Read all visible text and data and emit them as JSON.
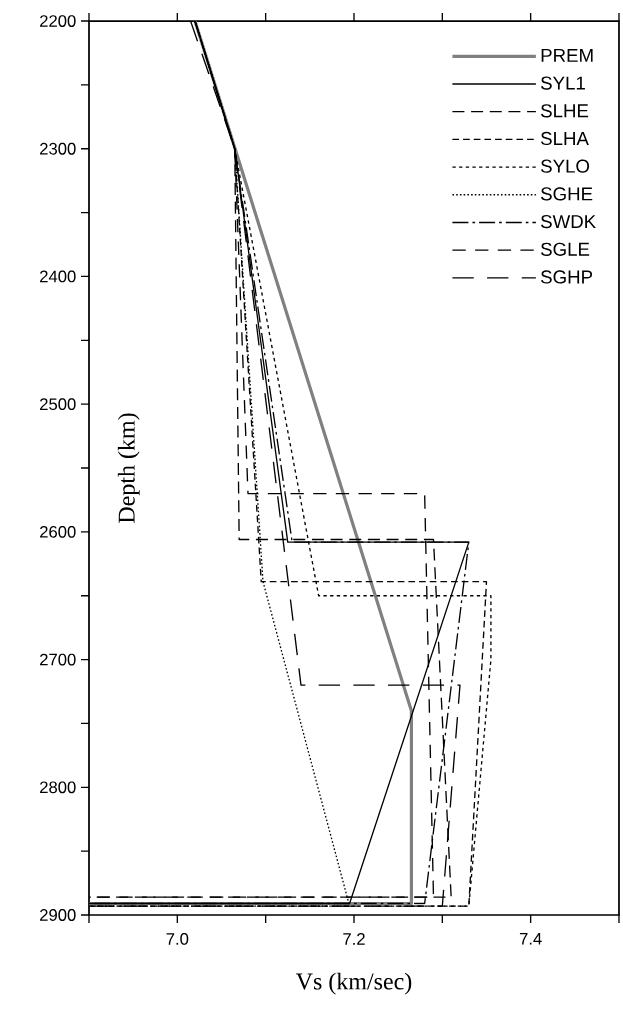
{
  "chart_data": {
    "type": "line",
    "xlabel": "Vs (km/sec)",
    "ylabel": "Depth (km)",
    "xlim": [
      6.9,
      7.5
    ],
    "ylim": [
      2900,
      2200
    ],
    "xticks": [
      {
        "value": 6.9,
        "label": null
      },
      {
        "value": 7.0,
        "label": "7.0"
      },
      {
        "value": 7.1,
        "label": null
      },
      {
        "value": 7.2,
        "label": "7.2"
      },
      {
        "value": 7.3,
        "label": null
      },
      {
        "value": 7.4,
        "label": "7.4"
      },
      {
        "value": 7.5,
        "label": null
      }
    ],
    "yticks": [
      2200,
      {
        "value": 2250,
        "label": null
      },
      2300,
      {
        "value": 2350,
        "label": null
      },
      2400,
      {
        "value": 2450,
        "label": null
      },
      2500,
      {
        "value": 2550,
        "label": null
      },
      2600,
      {
        "value": 2650,
        "label": null
      },
      2700,
      {
        "value": 2750,
        "label": null
      },
      2800,
      {
        "value": 2850,
        "label": null
      },
      2900
    ],
    "legend": "top right",
    "series": [
      {
        "name": "PREM",
        "color": "#808080",
        "line_style": "solid",
        "x": [
          7.02,
          7.265,
          7.265,
          6.9
        ],
        "values": [
          2200,
          2740,
          2891,
          2891
        ]
      },
      {
        "name": "SYL1",
        "color": "#000000",
        "line_style": "solid",
        "x": [
          7.02,
          7.065,
          7.125,
          7.33,
          7.195,
          6.9
        ],
        "values": [
          2200,
          2300,
          2608,
          2608,
          2891,
          2891
        ]
      },
      {
        "name": "SLHE",
        "color": "#000000",
        "line_style": "dashed",
        "x": [
          7.02,
          7.065,
          7.07,
          7.29,
          7.31,
          6.9
        ],
        "values": [
          2200,
          2300,
          2606,
          2606,
          2886,
          2886
        ]
      },
      {
        "name": "SLHA",
        "color": "#000000",
        "line_style": "dashed",
        "x": [
          7.02,
          7.065,
          7.095,
          7.35,
          7.33,
          6.9
        ],
        "values": [
          2200,
          2300,
          2639,
          2639,
          2893,
          2893
        ]
      },
      {
        "name": "SYLO",
        "color": "#000000",
        "line_style": "dotted",
        "x": [
          7.02,
          7.065,
          7.16,
          7.355,
          7.355,
          7.33,
          6.9
        ],
        "values": [
          2200,
          2300,
          2650,
          2650,
          2700,
          2893,
          2893
        ]
      },
      {
        "name": "SGHE",
        "color": "#000000",
        "line_style": "dotted",
        "x": [
          7.02,
          7.065,
          7.097,
          7.195,
          6.9
        ],
        "values": [
          2200,
          2300,
          2639,
          2893,
          2893
        ]
      },
      {
        "name": "SWDK",
        "color": "#000000",
        "line_style": "dashed",
        "x": [
          7.02,
          7.065,
          7.13,
          7.33,
          7.28,
          6.9
        ],
        "values": [
          2200,
          2300,
          2608,
          2608,
          2891,
          2891
        ]
      },
      {
        "name": "SGLE",
        "color": "#000000",
        "line_style": "dashed",
        "x": [
          7.02,
          7.065,
          7.08,
          7.28,
          7.29,
          6.9
        ],
        "values": [
          2200,
          2300,
          2570,
          2570,
          2886,
          2886
        ]
      },
      {
        "name": "SGHP",
        "color": "#000000",
        "line_style": "dashed",
        "x": [
          7.015,
          7.065,
          7.14,
          7.32,
          7.3,
          6.9
        ],
        "values": [
          2200,
          2300,
          2720,
          2720,
          2893,
          2893
        ]
      }
    ]
  }
}
